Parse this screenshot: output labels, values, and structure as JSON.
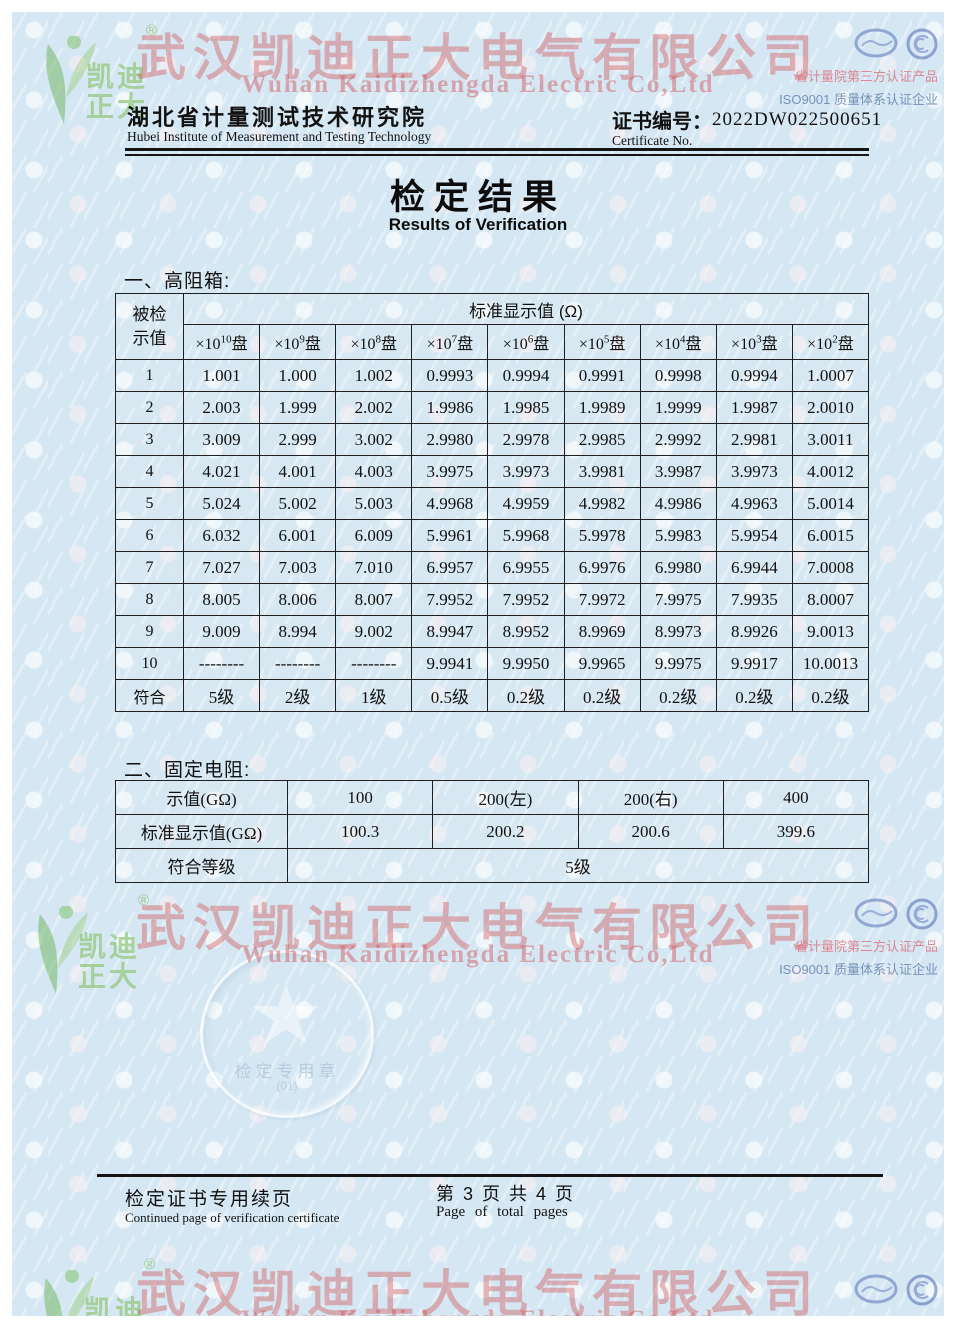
{
  "watermark": {
    "company_cn": "武汉凯迪正大电气有限公司",
    "company_en": "Wuhan Kaidizhengda Electric Co,Ltd",
    "logo_line1": "凯迪",
    "logo_line2": "正大",
    "registered_mark": "®",
    "cert_line1": "省计量院第三方认证产品",
    "cert_line2": "ISO9001 质量体系认证企业"
  },
  "header": {
    "institute_cn": "湖北省计量测试技术研究院",
    "institute_en": "Hubei Institute of Measurement and Testing Technology",
    "cert_no_label_cn": "证书编号：",
    "cert_no_label_en": "Certificate No.",
    "cert_no_value": "2022DW022500651"
  },
  "title": {
    "cn": "检定结果",
    "en": "Results of Verification"
  },
  "section1": {
    "label": "一、高阻箱:",
    "table": {
      "row_header_line1": "被检",
      "row_header_line2": "示值",
      "span_header": "标准显示值 (Ω)",
      "dial_prefix": "×10",
      "dial_suffix": "盘",
      "dial_exponents": [
        "10",
        "9",
        "8",
        "7",
        "6",
        "5",
        "4",
        "3",
        "2"
      ],
      "rows": [
        [
          "1",
          "1.001",
          "1.000",
          "1.002",
          "0.9993",
          "0.9994",
          "0.9991",
          "0.9998",
          "0.9994",
          "1.0007"
        ],
        [
          "2",
          "2.003",
          "1.999",
          "2.002",
          "1.9986",
          "1.9985",
          "1.9989",
          "1.9999",
          "1.9987",
          "2.0010"
        ],
        [
          "3",
          "3.009",
          "2.999",
          "3.002",
          "2.9980",
          "2.9978",
          "2.9985",
          "2.9992",
          "2.9981",
          "3.0011"
        ],
        [
          "4",
          "4.021",
          "4.001",
          "4.003",
          "3.9975",
          "3.9973",
          "3.9981",
          "3.9987",
          "3.9973",
          "4.0012"
        ],
        [
          "5",
          "5.024",
          "5.002",
          "5.003",
          "4.9968",
          "4.9959",
          "4.9982",
          "4.9986",
          "4.9963",
          "5.0014"
        ],
        [
          "6",
          "6.032",
          "6.001",
          "6.009",
          "5.9961",
          "5.9968",
          "5.9978",
          "5.9983",
          "5.9954",
          "6.0015"
        ],
        [
          "7",
          "7.027",
          "7.003",
          "7.010",
          "6.9957",
          "6.9955",
          "6.9976",
          "6.9980",
          "6.9944",
          "7.0008"
        ],
        [
          "8",
          "8.005",
          "8.006",
          "8.007",
          "7.9952",
          "7.9952",
          "7.9972",
          "7.9975",
          "7.9935",
          "8.0007"
        ],
        [
          "9",
          "9.009",
          "8.994",
          "9.002",
          "8.9947",
          "8.9952",
          "8.9969",
          "8.9973",
          "8.9926",
          "9.0013"
        ],
        [
          "10",
          "--------",
          "--------",
          "--------",
          "9.9941",
          "9.9950",
          "9.9965",
          "9.9975",
          "9.9917",
          "10.0013"
        ]
      ],
      "conformity_row": [
        "符合",
        "5级",
        "2级",
        "1级",
        "0.5级",
        "0.2级",
        "0.2级",
        "0.2级",
        "0.2级",
        "0.2级"
      ]
    }
  },
  "section2": {
    "label": "二、固定电阻:",
    "table": {
      "rows": [
        [
          "示值(GΩ)",
          "100",
          "200(左)",
          "200(右)",
          "400"
        ],
        [
          "标准显示值(GΩ)",
          "100.3",
          "200.2",
          "200.6",
          "399.6"
        ]
      ],
      "conformity_label": "符合等级",
      "conformity_value": "5级"
    }
  },
  "seal": {
    "text": "检定专用章",
    "number": "(01)"
  },
  "footer": {
    "continued_cn": "检定证书专用续页",
    "continued_en": "Continued page of verification certificate",
    "page_cn": "第 3 页 共 4 页",
    "page_en": "Page of total pages"
  },
  "colors": {
    "page_bg": "#d5e7f3",
    "watermark_red": "#d04646",
    "logo_green": "#96c87d",
    "cert_pink": "#de7680",
    "cert_blue": "#6482af",
    "ink": "#101010"
  }
}
